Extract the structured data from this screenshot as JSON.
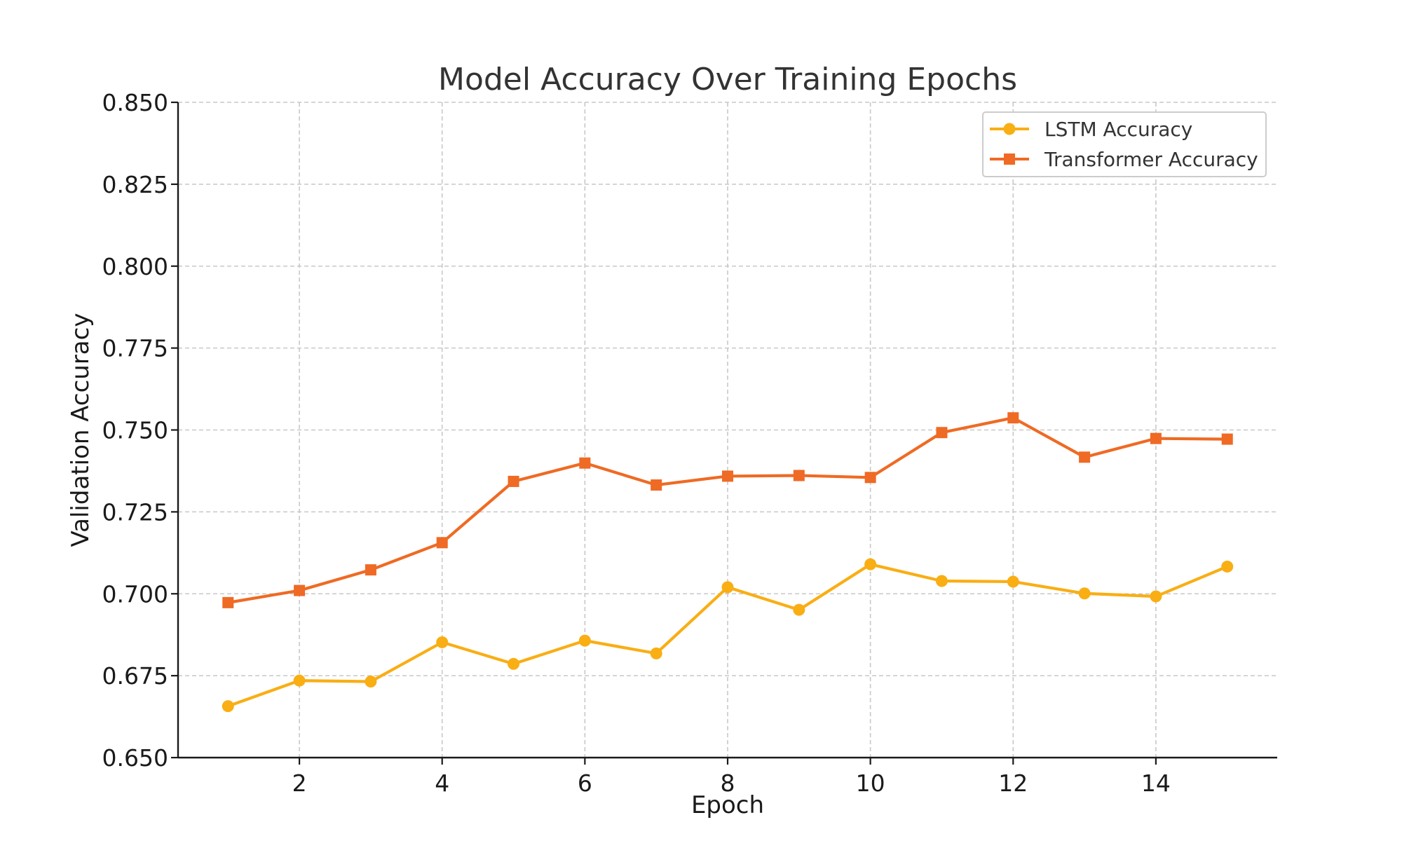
{
  "chart_data": {
    "type": "line",
    "title": "Model Accuracy Over Training Epochs",
    "xlabel": "Epoch",
    "ylabel": "Validation Accuracy",
    "xlim": [
      0.3,
      15.7
    ],
    "ylim": [
      0.65,
      0.85
    ],
    "xticks": [
      2,
      4,
      6,
      8,
      10,
      12,
      14
    ],
    "yticks": [
      0.65,
      0.675,
      0.7,
      0.725,
      0.75,
      0.775,
      0.8,
      0.825,
      0.85
    ],
    "ytick_labels": [
      "0.650",
      "0.675",
      "0.700",
      "0.725",
      "0.750",
      "0.775",
      "0.800",
      "0.825",
      "0.850"
    ],
    "grid": true,
    "legend_position": "top-right",
    "x": [
      1,
      2,
      3,
      4,
      5,
      6,
      7,
      8,
      9,
      10,
      11,
      12,
      13,
      14,
      15
    ],
    "series": [
      {
        "name": "LSTM Accuracy",
        "color": "#F9AE14",
        "marker": "circle",
        "values": [
          0.6657,
          0.6735,
          0.6732,
          0.6852,
          0.6786,
          0.6857,
          0.6818,
          0.702,
          0.6951,
          0.709,
          0.7039,
          0.7037,
          0.7001,
          0.6992,
          0.7083
        ]
      },
      {
        "name": "Transformer Accuracy",
        "color": "#EF6A24",
        "marker": "square",
        "values": [
          0.6973,
          0.701,
          0.7073,
          0.7156,
          0.7343,
          0.7399,
          0.7332,
          0.7359,
          0.7361,
          0.7355,
          0.7492,
          0.7537,
          0.7417,
          0.7474,
          0.7472
        ]
      }
    ]
  }
}
